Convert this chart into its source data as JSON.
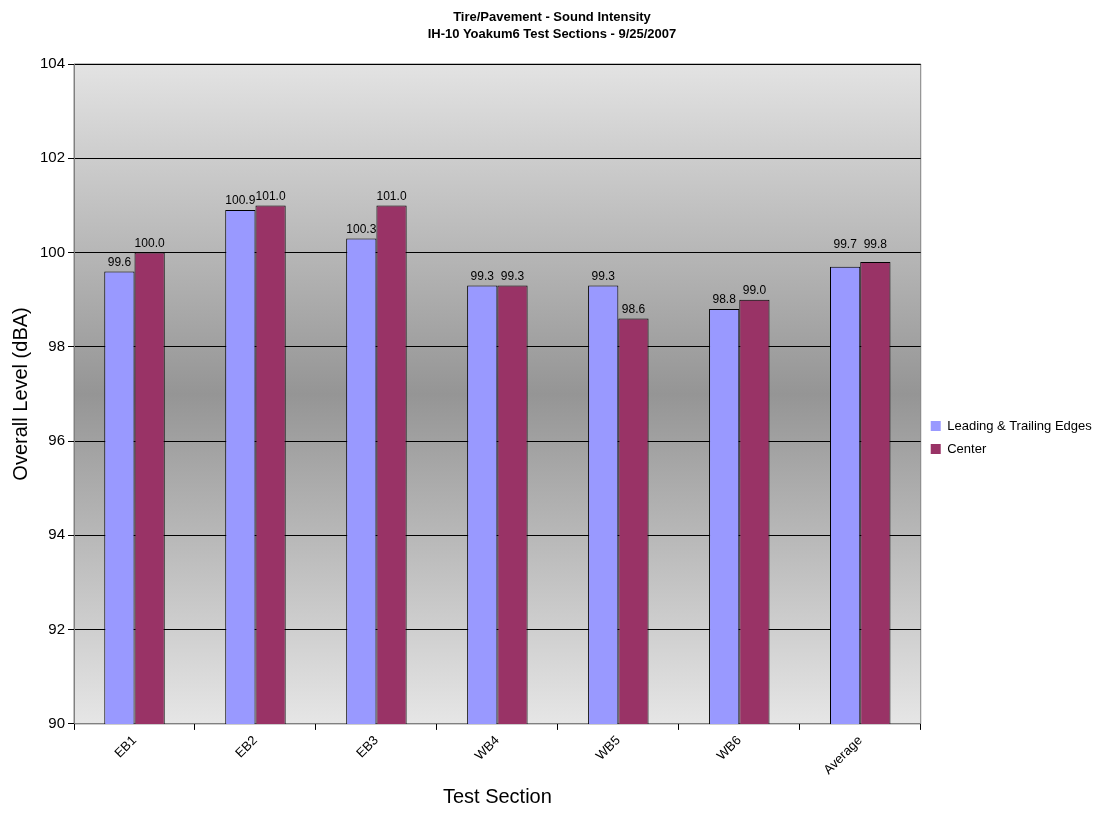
{
  "chart_data": {
    "type": "bar",
    "title": "Tire/Pavement - Sound Intensity",
    "subtitle": "IH-10 Yoakum6  Test Sections - 9/25/2007",
    "xlabel": "Test Section",
    "ylabel": "Overall Level (dBA)",
    "categories": [
      "EB1",
      "EB2",
      "EB3",
      "WB4",
      "WB5",
      "WB6",
      "Average"
    ],
    "series": [
      {
        "name": "Leading & Trailing Edges",
        "color": "#9999ff",
        "values": [
          99.6,
          100.9,
          100.3,
          99.3,
          99.3,
          98.8,
          99.7
        ],
        "value_labels": [
          "99.6",
          "100.9",
          "100.3",
          "99.3",
          "99.3",
          "98.8",
          "99.7"
        ]
      },
      {
        "name": "Center",
        "color": "#993366",
        "values": [
          100.0,
          101.0,
          101.0,
          99.3,
          98.6,
          99.0,
          99.8
        ],
        "value_labels": [
          "100.0",
          "101.0",
          "101.0",
          "99.3",
          "98.6",
          "99.0",
          "99.8"
        ]
      }
    ],
    "ylim": [
      90,
      104
    ],
    "yticks": [
      90,
      92,
      94,
      96,
      98,
      100,
      102,
      104
    ],
    "grid": "y",
    "legend": "right"
  }
}
